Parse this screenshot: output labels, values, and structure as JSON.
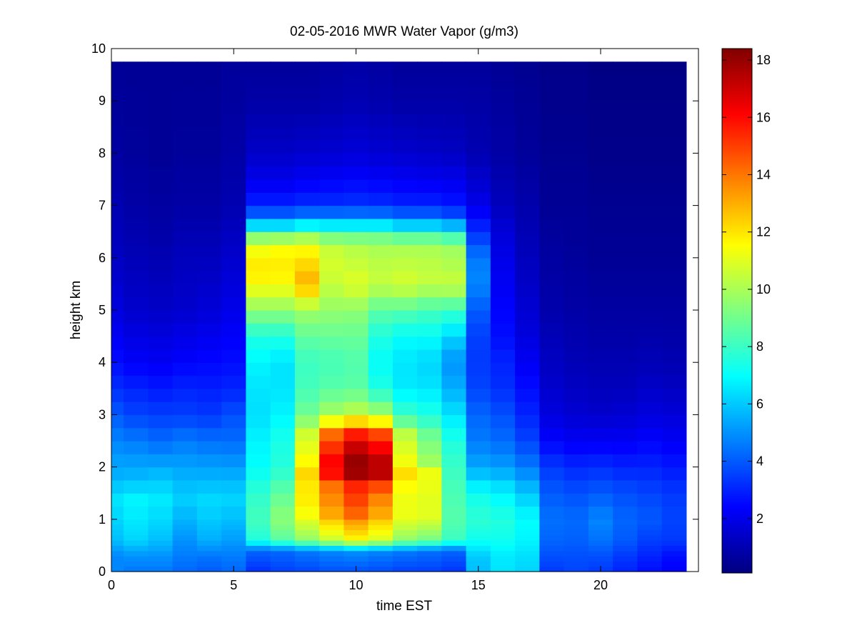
{
  "chart_data": {
    "type": "heatmap",
    "title": "02-05-2016 MWR Water Vapor (g/m3)",
    "xlabel": "time EST",
    "ylabel": "height km",
    "xlim": [
      0,
      24
    ],
    "ylim": [
      0,
      10
    ],
    "x_ticks": [
      0,
      5,
      10,
      15,
      20
    ],
    "y_ticks": [
      0,
      1,
      2,
      3,
      4,
      5,
      6,
      7,
      8,
      9,
      10
    ],
    "colorbar": {
      "colormap": "jet",
      "range": [
        0.1,
        18.4
      ],
      "ticks": [
        2,
        4,
        6,
        8,
        10,
        12,
        14,
        16,
        18
      ]
    },
    "x_bins": [
      0,
      1,
      2,
      3,
      4,
      5,
      6,
      7,
      8,
      9,
      10,
      11,
      12,
      13,
      14,
      15,
      16,
      17,
      18,
      19,
      20,
      21,
      22,
      23
    ],
    "y_levels": [
      0,
      0.1,
      0.2,
      0.3,
      0.4,
      0.5,
      0.6,
      0.7,
      0.8,
      0.9,
      1.0,
      1.25,
      1.5,
      1.75,
      2.0,
      2.25,
      2.5,
      2.75,
      3.0,
      3.25,
      3.5,
      3.75,
      4.0,
      4.25,
      4.5,
      4.75,
      5.0,
      5.25,
      5.5,
      5.75,
      6.0,
      6.25,
      6.5,
      6.75,
      7.0,
      7.25,
      7.5,
      7.75,
      8.0,
      8.25,
      8.5,
      8.75,
      9.0,
      9.25,
      9.5,
      9.75
    ],
    "profiles": [
      {
        "time": 0,
        "z": [
          0,
          0.3,
          0.6,
          1,
          1.4,
          1.8,
          2.5,
          3,
          3.5,
          4,
          5,
          6,
          7,
          8,
          9.75
        ],
        "v": [
          4.8,
          4.8,
          5.8,
          6.2,
          6.5,
          5.6,
          4.8,
          4,
          3.2,
          2.6,
          1.8,
          1.3,
          1,
          0.7,
          0.5
        ]
      },
      {
        "time": 1,
        "z": [
          0,
          0.3,
          0.6,
          1,
          1.4,
          1.8,
          2.5,
          3,
          3.5,
          4,
          5,
          6,
          7,
          8,
          9.75
        ],
        "v": [
          4.5,
          5,
          6.2,
          6.6,
          6.8,
          5.7,
          4.6,
          3.6,
          3,
          2.3,
          1.5,
          1.1,
          0.8,
          0.6,
          0.5
        ]
      },
      {
        "time": 2,
        "z": [
          0,
          0.3,
          0.6,
          1,
          1.4,
          1.8,
          2.5,
          3,
          3.5,
          4,
          5,
          6,
          7,
          8,
          9.75
        ],
        "v": [
          4.5,
          5,
          5.8,
          6.3,
          6.6,
          5.9,
          4.3,
          3.5,
          2.8,
          2.2,
          1.4,
          1,
          0.7,
          0.5,
          0.5
        ]
      },
      {
        "time": 3,
        "z": [
          0,
          0.3,
          0.6,
          1,
          1.4,
          1.8,
          2.5,
          3,
          3.5,
          4,
          5,
          6,
          7,
          8,
          9.75
        ],
        "v": [
          4.2,
          4.6,
          5,
          5.6,
          6.1,
          5.6,
          4.6,
          3.5,
          3,
          2.4,
          1.5,
          1.2,
          0.8,
          0.6,
          0.5
        ]
      },
      {
        "time": 4,
        "z": [
          0,
          0.3,
          0.6,
          1,
          1.4,
          1.8,
          2.5,
          3,
          3.5,
          4,
          5,
          6,
          7,
          8,
          9.75
        ],
        "v": [
          4,
          4.5,
          5.5,
          6,
          6.3,
          5.6,
          4.4,
          3.4,
          2.9,
          2.5,
          1.7,
          1.2,
          0.8,
          0.6,
          0.5
        ]
      },
      {
        "time": 5,
        "z": [
          0,
          0.3,
          0.6,
          1,
          1.4,
          1.8,
          2.5,
          3,
          3.5,
          4,
          5,
          6,
          7,
          8,
          9.75
        ],
        "v": [
          4.2,
          4.6,
          5.2,
          5.8,
          6.2,
          5.6,
          4.3,
          3.8,
          3,
          2.6,
          2,
          1.5,
          1,
          0.8,
          0.6
        ]
      },
      {
        "time": 6,
        "z": [
          0,
          0.4,
          0.6,
          1,
          1.5,
          2,
          2.5,
          3,
          3.5,
          4,
          4.5,
          5,
          5.5,
          5.8,
          6.2,
          6.5,
          6.7,
          7,
          7.5,
          8,
          9,
          9.75
        ],
        "v": [
          3.2,
          4.2,
          7.5,
          8.2,
          7.8,
          7,
          6.8,
          6.4,
          6.5,
          6.8,
          7.5,
          9.5,
          11.5,
          12,
          11.2,
          8.5,
          5,
          3,
          2,
          1.4,
          0.8,
          0.6
        ]
      },
      {
        "time": 7,
        "z": [
          0,
          0.4,
          0.6,
          1,
          1.5,
          2,
          2.5,
          3,
          3.5,
          4,
          4.5,
          5,
          5.5,
          5.8,
          6.2,
          6.5,
          6.7,
          7,
          7.5,
          8,
          9,
          9.75
        ],
        "v": [
          3.5,
          4.3,
          8.5,
          9.5,
          8.7,
          7.6,
          7.4,
          6.8,
          6.5,
          6.5,
          7.5,
          9.5,
          11.5,
          11.9,
          11.5,
          8.5,
          5,
          3,
          2,
          1.4,
          0.8,
          0.6
        ]
      },
      {
        "time": 8,
        "z": [
          0,
          0.4,
          0.6,
          1,
          1.3,
          1.5,
          1.8,
          2,
          2.3,
          2.6,
          3,
          3.5,
          4,
          4.5,
          5,
          5.5,
          5.8,
          6.2,
          6.5,
          6.7,
          7,
          7.5,
          8,
          9,
          9.75
        ],
        "v": [
          3.6,
          4.6,
          9.5,
          11,
          12,
          11.5,
          12.5,
          11.8,
          11.2,
          10.8,
          9,
          8.2,
          8,
          8.7,
          9.8,
          13,
          12.4,
          11.5,
          9,
          5.5,
          3.2,
          2.2,
          1.5,
          0.8,
          0.6
        ]
      },
      {
        "time": 9,
        "z": [
          0,
          0.4,
          0.6,
          1,
          1.3,
          1.5,
          1.8,
          2,
          2.3,
          2.6,
          3,
          3.5,
          4,
          4.5,
          5,
          5.5,
          5.8,
          6.2,
          6.5,
          6.7,
          7,
          7.5,
          8,
          9,
          9.75
        ],
        "v": [
          3.8,
          4.8,
          10.5,
          12.5,
          14,
          13,
          15.5,
          16.5,
          15.5,
          14.5,
          10,
          8.5,
          8.2,
          8.8,
          9.6,
          10.5,
          10.8,
          10.5,
          8.5,
          5.5,
          3.2,
          2.3,
          1.6,
          0.9,
          0.7
        ]
      },
      {
        "time": 10,
        "z": [
          0,
          0.4,
          0.6,
          1,
          1.3,
          1.5,
          1.8,
          2,
          2.3,
          2.6,
          3,
          3.5,
          4,
          4.5,
          5,
          5.5,
          5.8,
          6.2,
          6.5,
          6.7,
          7,
          7.5,
          8,
          9,
          9.75
        ],
        "v": [
          3.8,
          5,
          11.5,
          13.5,
          15.5,
          14,
          17.5,
          18.3,
          17.5,
          16,
          10.5,
          8.6,
          8.4,
          8.8,
          9.5,
          11,
          10.6,
          10.2,
          8.5,
          5.5,
          3.3,
          2.4,
          1.7,
          1,
          0.8
        ]
      },
      {
        "time": 11,
        "z": [
          0,
          0.4,
          0.6,
          1,
          1.3,
          1.5,
          1.8,
          2,
          2.3,
          2.6,
          3,
          3.5,
          4,
          4.5,
          5,
          5.5,
          5.8,
          6.2,
          6.5,
          6.7,
          7,
          7.5,
          8,
          9,
          9.75
        ],
        "v": [
          3.7,
          4.8,
          10.8,
          12.5,
          14,
          13.2,
          17,
          17.8,
          16.5,
          15.2,
          10,
          7.5,
          7,
          7.5,
          8.6,
          10.5,
          10.4,
          10,
          8.5,
          5.5,
          3.2,
          2.3,
          1.6,
          0.9,
          0.7
        ]
      },
      {
        "time": 12,
        "z": [
          0,
          0.4,
          0.6,
          1,
          1.3,
          1.5,
          1.8,
          2,
          2.3,
          2.6,
          3,
          3.5,
          4,
          4.5,
          5,
          5.5,
          5.8,
          6.2,
          6.5,
          6.7,
          7,
          7.5,
          8,
          9,
          9.75
        ],
        "v": [
          3.5,
          4.6,
          9.5,
          11,
          11.5,
          10.8,
          12.5,
          11.5,
          11,
          10.5,
          8,
          6.6,
          6.5,
          7,
          8.5,
          10.8,
          10.5,
          10,
          8,
          5,
          3,
          2.2,
          1.5,
          0.8,
          0.6
        ]
      },
      {
        "time": 13,
        "z": [
          0,
          0.4,
          0.6,
          1,
          1.3,
          1.5,
          1.8,
          2,
          2.3,
          2.6,
          3,
          3.5,
          4,
          4.5,
          5,
          5.5,
          5.8,
          6.2,
          6.5,
          6.7,
          7,
          7.5,
          8,
          9,
          9.75
        ],
        "v": [
          3.5,
          4.4,
          9,
          10.8,
          11.3,
          10.6,
          12,
          10,
          9.5,
          9,
          7.5,
          6.5,
          6.2,
          7,
          8.2,
          10.5,
          10.4,
          10,
          8,
          5,
          3,
          2.1,
          1.4,
          0.8,
          0.6
        ]
      },
      {
        "time": 14,
        "z": [
          0,
          0.4,
          0.6,
          1,
          1.5,
          2,
          2.5,
          3,
          3.5,
          4,
          4.5,
          5,
          5.5,
          5.8,
          6.2,
          6.5,
          6.7,
          7,
          7.5,
          8,
          9,
          9.75
        ],
        "v": [
          3.3,
          4.2,
          8,
          8.5,
          8.3,
          8,
          7.5,
          6.5,
          5.5,
          5,
          6.2,
          8,
          10.6,
          10.2,
          9.8,
          7.5,
          4.5,
          2.8,
          2,
          1.3,
          0.8,
          0.6
        ]
      },
      {
        "time": 15,
        "z": [
          0,
          0.3,
          0.6,
          1,
          1.5,
          2,
          2.5,
          3,
          3.5,
          4,
          4.5,
          5,
          5.5,
          6,
          6.5,
          7,
          8,
          9.75
        ],
        "v": [
          5.8,
          6,
          7.2,
          7.8,
          7.2,
          5.4,
          4.6,
          4.2,
          3.6,
          3.4,
          3.5,
          4,
          4.8,
          4.6,
          3.2,
          2,
          1,
          0.6
        ]
      },
      {
        "time": 16,
        "z": [
          0,
          0.3,
          0.6,
          1,
          1.5,
          2,
          2.5,
          3,
          3.5,
          4,
          4.5,
          5,
          5.5,
          6,
          6.5,
          7,
          8,
          9.75
        ],
        "v": [
          6.5,
          6.6,
          7.2,
          7.6,
          6.8,
          5.2,
          4.3,
          3.8,
          3.2,
          3,
          2.6,
          2.4,
          2.2,
          2,
          1.7,
          1.2,
          0.8,
          0.5
        ]
      },
      {
        "time": 17,
        "z": [
          0,
          0.3,
          0.6,
          1,
          1.5,
          2,
          2.5,
          3,
          3.5,
          4,
          4.5,
          5,
          5.5,
          6,
          7,
          8,
          9.75
        ],
        "v": [
          6.2,
          6.4,
          6.8,
          7,
          6,
          4.6,
          3.6,
          3,
          2.6,
          2.2,
          1.8,
          1.6,
          1.4,
          1.2,
          0.9,
          0.6,
          0.4
        ]
      },
      {
        "time": 18,
        "z": [
          0,
          0.3,
          0.6,
          1,
          1.5,
          2,
          2.5,
          3,
          3.5,
          4,
          5,
          6,
          7,
          8,
          9.75
        ],
        "v": [
          3.4,
          3.8,
          4.2,
          4.4,
          4,
          3.4,
          2.4,
          1.8,
          1.5,
          1.3,
          0.9,
          0.7,
          0.5,
          0.4,
          0.3
        ]
      },
      {
        "time": 19,
        "z": [
          0,
          0.3,
          0.6,
          1,
          1.5,
          2,
          2.5,
          3,
          3.5,
          4,
          5,
          6,
          7,
          8,
          9.75
        ],
        "v": [
          3.6,
          3.8,
          4.1,
          4.3,
          3.8,
          3.1,
          2.2,
          1.6,
          1.3,
          1.1,
          0.8,
          0.6,
          0.5,
          0.4,
          0.3
        ]
      },
      {
        "time": 20,
        "z": [
          0,
          0.3,
          0.6,
          1,
          1.5,
          2,
          2.5,
          3,
          3.5,
          4,
          5,
          6,
          7,
          8,
          9.75
        ],
        "v": [
          3.4,
          3.8,
          4.4,
          4.8,
          4,
          3.2,
          2.2,
          1.5,
          1.2,
          1,
          0.7,
          0.5,
          0.4,
          0.3,
          0.2
        ]
      },
      {
        "time": 21,
        "z": [
          0,
          0.3,
          0.6,
          1,
          1.5,
          2,
          2.5,
          3,
          3.5,
          4,
          5,
          6,
          7,
          8,
          9.75
        ],
        "v": [
          3,
          3.4,
          4,
          4.2,
          3.8,
          3,
          2.2,
          1.6,
          1.2,
          1,
          0.7,
          0.5,
          0.4,
          0.3,
          0.2
        ]
      },
      {
        "time": 22,
        "z": [
          0,
          0.3,
          0.6,
          1,
          1.5,
          2,
          2.5,
          3,
          3.5,
          4,
          5,
          6,
          7,
          8,
          9.75
        ],
        "v": [
          2.6,
          3,
          3.5,
          4,
          3.6,
          3,
          2.4,
          1.8,
          1.4,
          1.1,
          0.7,
          0.5,
          0.4,
          0.3,
          0.2
        ]
      },
      {
        "time": 23,
        "z": [
          0,
          0.3,
          0.6,
          1,
          1.5,
          2,
          2.5,
          3,
          3.5,
          4,
          5,
          6,
          7,
          8,
          9.75
        ],
        "v": [
          2.3,
          2.6,
          3.4,
          3.6,
          3.4,
          2.8,
          2.2,
          1.7,
          1.3,
          1,
          0.7,
          0.5,
          0.4,
          0.3,
          0.2
        ]
      }
    ]
  }
}
